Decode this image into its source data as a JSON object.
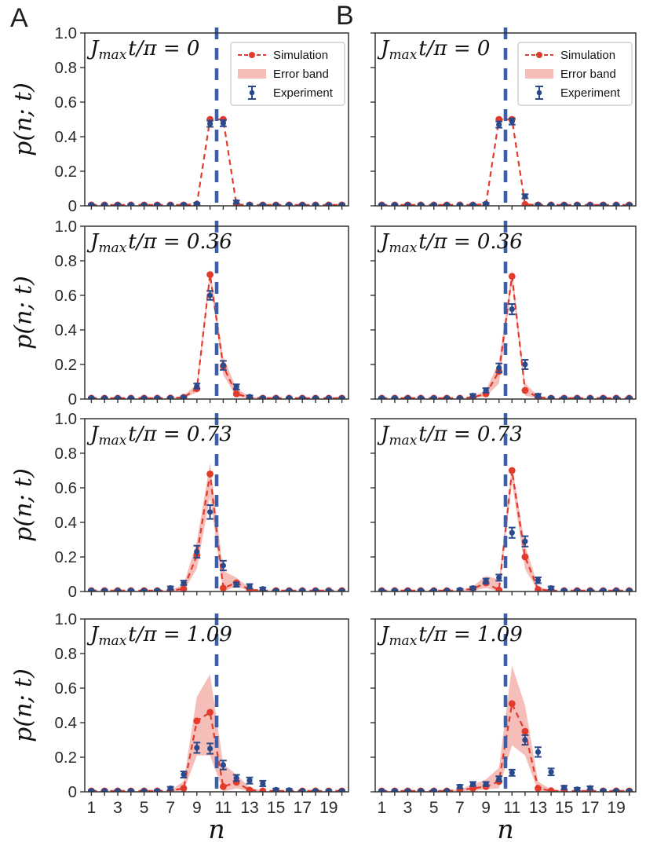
{
  "figure": {
    "panel_labels": [
      "A",
      "B"
    ],
    "ylabel": "p(n; t)",
    "xlabel": "n",
    "legend_labels": [
      "Simulation",
      "Error band",
      "Experiment"
    ],
    "xticklabels": [
      "1",
      "3",
      "5",
      "7",
      "9",
      "11",
      "13",
      "15",
      "17",
      "19"
    ],
    "yticklabels": [
      "0",
      "0.2",
      "0.4",
      "0.6",
      "0.8",
      "1.0"
    ],
    "colors": {
      "simulation": "#e23b2c",
      "error_band": "rgba(226,59,44,0.33)",
      "experiment": "#2a4a8c",
      "vline": "#3c5fa6",
      "axis": "#333333",
      "text": "#2b2b2b",
      "title": "#111111",
      "legend_border": "#c8c8c8"
    }
  },
  "chart_data": [
    {
      "id": "A1",
      "column": "A",
      "row": 1,
      "type": "line",
      "title_var": "J",
      "title_sub": "max",
      "title_rest": "t/π",
      "title_value": "0",
      "xlim": [
        0.5,
        20.5
      ],
      "ylim": [
        0,
        1
      ],
      "vline_x": 10.5,
      "show_legend": true,
      "show_xticklabels": false,
      "show_yticklabels": true,
      "x": [
        1,
        2,
        3,
        4,
        5,
        6,
        7,
        8,
        9,
        10,
        11,
        12,
        13,
        14,
        15,
        16,
        17,
        18,
        19,
        20
      ],
      "simulation": [
        0.005,
        0.005,
        0.005,
        0.005,
        0.005,
        0.005,
        0.005,
        0.005,
        0.01,
        0.5,
        0.5,
        0.008,
        0.005,
        0.005,
        0.005,
        0.005,
        0.005,
        0.005,
        0.005,
        0.005
      ],
      "band_lower": [
        0.005,
        0.005,
        0.005,
        0.005,
        0.005,
        0.005,
        0.005,
        0.005,
        0.01,
        0.5,
        0.5,
        0.008,
        0.005,
        0.005,
        0.005,
        0.005,
        0.005,
        0.005,
        0.005,
        0.005
      ],
      "band_upper": [
        0.005,
        0.005,
        0.005,
        0.005,
        0.005,
        0.005,
        0.005,
        0.005,
        0.01,
        0.5,
        0.5,
        0.008,
        0.005,
        0.005,
        0.005,
        0.005,
        0.005,
        0.005,
        0.005,
        0.005
      ],
      "experiment": [
        0.005,
        0.005,
        0.005,
        0.005,
        0.005,
        0.005,
        0.005,
        0.006,
        0.012,
        0.475,
        0.478,
        0.022,
        0.006,
        0.005,
        0.005,
        0.005,
        0.005,
        0.005,
        0.005,
        0.005
      ],
      "exp_err": [
        0.004,
        0.004,
        0.004,
        0.004,
        0.004,
        0.004,
        0.004,
        0.005,
        0.006,
        0.018,
        0.018,
        0.009,
        0.005,
        0.004,
        0.004,
        0.004,
        0.004,
        0.004,
        0.004,
        0.004
      ]
    },
    {
      "id": "B1",
      "column": "B",
      "row": 1,
      "type": "line",
      "title_var": "J",
      "title_sub": "max",
      "title_rest": "t/π",
      "title_value": "0",
      "xlim": [
        0.5,
        20.5
      ],
      "ylim": [
        0,
        1
      ],
      "vline_x": 10.5,
      "show_legend": true,
      "show_xticklabels": false,
      "show_yticklabels": false,
      "x": [
        1,
        2,
        3,
        4,
        5,
        6,
        7,
        8,
        9,
        10,
        11,
        12,
        13,
        14,
        15,
        16,
        17,
        18,
        19,
        20
      ],
      "simulation": [
        0.005,
        0.005,
        0.005,
        0.005,
        0.005,
        0.005,
        0.005,
        0.005,
        0.01,
        0.5,
        0.5,
        0.008,
        0.005,
        0.005,
        0.005,
        0.005,
        0.005,
        0.005,
        0.005,
        0.005
      ],
      "band_lower": [
        0.005,
        0.005,
        0.005,
        0.005,
        0.005,
        0.005,
        0.005,
        0.005,
        0.01,
        0.5,
        0.5,
        0.008,
        0.005,
        0.005,
        0.005,
        0.005,
        0.005,
        0.005,
        0.005,
        0.005
      ],
      "band_upper": [
        0.005,
        0.005,
        0.005,
        0.005,
        0.005,
        0.005,
        0.005,
        0.005,
        0.01,
        0.5,
        0.5,
        0.008,
        0.005,
        0.005,
        0.005,
        0.005,
        0.005,
        0.005,
        0.005,
        0.005
      ],
      "experiment": [
        0.005,
        0.005,
        0.005,
        0.005,
        0.005,
        0.005,
        0.005,
        0.005,
        0.012,
        0.47,
        0.488,
        0.055,
        0.006,
        0.005,
        0.005,
        0.005,
        0.005,
        0.005,
        0.005,
        0.005
      ],
      "exp_err": [
        0.004,
        0.004,
        0.004,
        0.004,
        0.004,
        0.004,
        0.004,
        0.004,
        0.006,
        0.018,
        0.018,
        0.012,
        0.005,
        0.004,
        0.004,
        0.004,
        0.004,
        0.004,
        0.004,
        0.004
      ]
    },
    {
      "id": "A2",
      "column": "A",
      "row": 2,
      "type": "line",
      "title_var": "J",
      "title_sub": "max",
      "title_rest": "t/π",
      "title_value": "0.36",
      "xlim": [
        0.5,
        20.5
      ],
      "ylim": [
        0,
        1
      ],
      "vline_x": 10.5,
      "show_legend": false,
      "show_xticklabels": false,
      "show_yticklabels": true,
      "x": [
        1,
        2,
        3,
        4,
        5,
        6,
        7,
        8,
        9,
        10,
        11,
        12,
        13,
        14,
        15,
        16,
        17,
        18,
        19,
        20
      ],
      "simulation": [
        0.005,
        0.005,
        0.005,
        0.005,
        0.005,
        0.005,
        0.006,
        0.01,
        0.06,
        0.72,
        0.19,
        0.03,
        0.008,
        0.005,
        0.005,
        0.005,
        0.005,
        0.005,
        0.005,
        0.005
      ],
      "band_lower": [
        0.005,
        0.005,
        0.005,
        0.005,
        0.005,
        0.005,
        0.005,
        0.006,
        0.038,
        0.69,
        0.14,
        0.012,
        0.004,
        0.005,
        0.005,
        0.005,
        0.005,
        0.005,
        0.005,
        0.005
      ],
      "band_upper": [
        0.005,
        0.005,
        0.005,
        0.005,
        0.005,
        0.005,
        0.007,
        0.018,
        0.088,
        0.752,
        0.245,
        0.062,
        0.016,
        0.005,
        0.005,
        0.005,
        0.005,
        0.005,
        0.005,
        0.005
      ],
      "experiment": [
        0.005,
        0.005,
        0.005,
        0.005,
        0.005,
        0.005,
        0.006,
        0.01,
        0.075,
        0.6,
        0.195,
        0.07,
        0.013,
        0.006,
        0.005,
        0.005,
        0.005,
        0.005,
        0.005,
        0.005
      ],
      "exp_err": [
        0.004,
        0.004,
        0.004,
        0.004,
        0.004,
        0.004,
        0.005,
        0.006,
        0.015,
        0.026,
        0.026,
        0.015,
        0.008,
        0.005,
        0.004,
        0.004,
        0.004,
        0.004,
        0.004,
        0.004
      ]
    },
    {
      "id": "B2",
      "column": "B",
      "row": 2,
      "type": "line",
      "title_var": "J",
      "title_sub": "max",
      "title_rest": "t/π",
      "title_value": "0.36",
      "xlim": [
        0.5,
        20.5
      ],
      "ylim": [
        0,
        1
      ],
      "vline_x": 10.5,
      "show_legend": false,
      "show_xticklabels": false,
      "show_yticklabels": false,
      "x": [
        1,
        2,
        3,
        4,
        5,
        6,
        7,
        8,
        9,
        10,
        11,
        12,
        13,
        14,
        15,
        16,
        17,
        18,
        19,
        20
      ],
      "simulation": [
        0.005,
        0.005,
        0.005,
        0.005,
        0.005,
        0.005,
        0.005,
        0.01,
        0.03,
        0.16,
        0.71,
        0.05,
        0.01,
        0.005,
        0.005,
        0.005,
        0.005,
        0.005,
        0.005,
        0.005
      ],
      "band_lower": [
        0.005,
        0.005,
        0.005,
        0.005,
        0.005,
        0.005,
        0.005,
        0.006,
        0.015,
        0.09,
        0.67,
        0.02,
        0.004,
        0.005,
        0.005,
        0.005,
        0.005,
        0.005,
        0.005,
        0.005
      ],
      "band_upper": [
        0.005,
        0.005,
        0.005,
        0.005,
        0.005,
        0.005,
        0.005,
        0.014,
        0.052,
        0.215,
        0.75,
        0.092,
        0.018,
        0.005,
        0.005,
        0.005,
        0.005,
        0.005,
        0.005,
        0.005
      ],
      "experiment": [
        0.005,
        0.005,
        0.005,
        0.005,
        0.005,
        0.005,
        0.005,
        0.02,
        0.05,
        0.18,
        0.52,
        0.2,
        0.02,
        0.006,
        0.005,
        0.005,
        0.005,
        0.005,
        0.005,
        0.005
      ],
      "exp_err": [
        0.004,
        0.004,
        0.004,
        0.004,
        0.004,
        0.004,
        0.004,
        0.009,
        0.013,
        0.026,
        0.03,
        0.027,
        0.01,
        0.005,
        0.004,
        0.004,
        0.004,
        0.004,
        0.004,
        0.004
      ]
    },
    {
      "id": "A3",
      "column": "A",
      "row": 3,
      "type": "line",
      "title_var": "J",
      "title_sub": "max",
      "title_rest": "t/π",
      "title_value": "0.73",
      "xlim": [
        0.5,
        20.5
      ],
      "ylim": [
        0,
        1
      ],
      "vline_x": 10.5,
      "show_legend": false,
      "show_xticklabels": false,
      "show_yticklabels": true,
      "x": [
        1,
        2,
        3,
        4,
        5,
        6,
        7,
        8,
        9,
        10,
        11,
        12,
        13,
        14,
        15,
        16,
        17,
        18,
        19,
        20
      ],
      "simulation": [
        0.005,
        0.005,
        0.005,
        0.005,
        0.005,
        0.005,
        0.006,
        0.015,
        0.21,
        0.68,
        0.02,
        0.05,
        0.01,
        0.005,
        0.005,
        0.005,
        0.005,
        0.005,
        0.005,
        0.005
      ],
      "band_lower": [
        0.005,
        0.005,
        0.005,
        0.005,
        0.005,
        0.005,
        0.005,
        0.006,
        0.13,
        0.55,
        0.001,
        0.028,
        0.003,
        0.005,
        0.005,
        0.005,
        0.005,
        0.005,
        0.005,
        0.005
      ],
      "band_upper": [
        0.005,
        0.005,
        0.005,
        0.005,
        0.005,
        0.005,
        0.008,
        0.04,
        0.29,
        0.745,
        0.12,
        0.08,
        0.022,
        0.005,
        0.005,
        0.005,
        0.005,
        0.005,
        0.005,
        0.005
      ],
      "experiment": [
        0.005,
        0.005,
        0.005,
        0.005,
        0.005,
        0.005,
        0.02,
        0.05,
        0.23,
        0.46,
        0.15,
        0.04,
        0.03,
        0.015,
        0.005,
        0.005,
        0.005,
        0.005,
        0.005,
        0.005
      ],
      "exp_err": [
        0.004,
        0.004,
        0.004,
        0.004,
        0.004,
        0.004,
        0.009,
        0.013,
        0.035,
        0.04,
        0.028,
        0.013,
        0.013,
        0.008,
        0.004,
        0.004,
        0.004,
        0.004,
        0.004,
        0.004
      ]
    },
    {
      "id": "B3",
      "column": "B",
      "row": 3,
      "type": "line",
      "title_var": "J",
      "title_sub": "max",
      "title_rest": "t/π",
      "title_value": "0.73",
      "xlim": [
        0.5,
        20.5
      ],
      "ylim": [
        0,
        1
      ],
      "vline_x": 10.5,
      "show_legend": false,
      "show_xticklabels": false,
      "show_yticklabels": false,
      "x": [
        1,
        2,
        3,
        4,
        5,
        6,
        7,
        8,
        9,
        10,
        11,
        12,
        13,
        14,
        15,
        16,
        17,
        18,
        19,
        20
      ],
      "simulation": [
        0.005,
        0.005,
        0.005,
        0.005,
        0.005,
        0.005,
        0.006,
        0.015,
        0.05,
        0.008,
        0.7,
        0.2,
        0.012,
        0.005,
        0.005,
        0.005,
        0.005,
        0.005,
        0.005,
        0.005
      ],
      "band_lower": [
        0.005,
        0.005,
        0.005,
        0.005,
        0.005,
        0.005,
        0.005,
        0.006,
        0.02,
        0.001,
        0.63,
        0.13,
        0.003,
        0.005,
        0.005,
        0.005,
        0.005,
        0.005,
        0.005,
        0.005
      ],
      "band_upper": [
        0.005,
        0.005,
        0.005,
        0.005,
        0.005,
        0.005,
        0.008,
        0.03,
        0.09,
        0.07,
        0.73,
        0.268,
        0.03,
        0.005,
        0.005,
        0.005,
        0.005,
        0.005,
        0.005,
        0.005
      ],
      "experiment": [
        0.005,
        0.005,
        0.005,
        0.005,
        0.005,
        0.005,
        0.01,
        0.02,
        0.06,
        0.08,
        0.34,
        0.29,
        0.065,
        0.02,
        0.005,
        0.005,
        0.005,
        0.005,
        0.005,
        0.005
      ],
      "exp_err": [
        0.004,
        0.004,
        0.004,
        0.004,
        0.004,
        0.004,
        0.006,
        0.008,
        0.015,
        0.018,
        0.03,
        0.03,
        0.017,
        0.009,
        0.004,
        0.004,
        0.004,
        0.004,
        0.004,
        0.004
      ]
    },
    {
      "id": "A4",
      "column": "A",
      "row": 4,
      "type": "line",
      "title_var": "J",
      "title_sub": "max",
      "title_rest": "t/π",
      "title_value": "1.09",
      "xlim": [
        0.5,
        20.5
      ],
      "ylim": [
        0,
        1
      ],
      "vline_x": 10.5,
      "show_legend": false,
      "show_xticklabels": true,
      "show_yticklabels": true,
      "x": [
        1,
        2,
        3,
        4,
        5,
        6,
        7,
        8,
        9,
        10,
        11,
        12,
        13,
        14,
        15,
        16,
        17,
        18,
        19,
        20
      ],
      "simulation": [
        0.005,
        0.005,
        0.005,
        0.005,
        0.005,
        0.005,
        0.006,
        0.02,
        0.41,
        0.46,
        0.03,
        0.055,
        0.01,
        0.005,
        0.005,
        0.005,
        0.005,
        0.005,
        0.005,
        0.005
      ],
      "band_lower": [
        0.005,
        0.005,
        0.005,
        0.005,
        0.005,
        0.005,
        0.005,
        0.006,
        0.21,
        0.21,
        0.001,
        0.02,
        0.003,
        0.005,
        0.005,
        0.005,
        0.005,
        0.005,
        0.005,
        0.005
      ],
      "band_upper": [
        0.005,
        0.005,
        0.005,
        0.005,
        0.005,
        0.005,
        0.008,
        0.06,
        0.55,
        0.68,
        0.16,
        0.1,
        0.025,
        0.005,
        0.005,
        0.005,
        0.005,
        0.005,
        0.005,
        0.005
      ],
      "experiment": [
        0.005,
        0.005,
        0.005,
        0.005,
        0.005,
        0.005,
        0.02,
        0.1,
        0.255,
        0.25,
        0.155,
        0.08,
        0.065,
        0.048,
        0.012,
        0.01,
        0.005,
        0.005,
        0.005,
        0.005
      ],
      "exp_err": [
        0.004,
        0.004,
        0.004,
        0.004,
        0.004,
        0.004,
        0.009,
        0.018,
        0.03,
        0.03,
        0.026,
        0.018,
        0.018,
        0.016,
        0.007,
        0.007,
        0.004,
        0.004,
        0.004,
        0.004
      ]
    },
    {
      "id": "B4",
      "column": "B",
      "row": 4,
      "type": "line",
      "title_var": "J",
      "title_sub": "max",
      "title_rest": "t/π",
      "title_value": "1.09",
      "xlim": [
        0.5,
        20.5
      ],
      "ylim": [
        0,
        1
      ],
      "vline_x": 10.5,
      "show_legend": false,
      "show_xticklabels": true,
      "show_yticklabels": false,
      "x": [
        1,
        2,
        3,
        4,
        5,
        6,
        7,
        8,
        9,
        10,
        11,
        12,
        13,
        14,
        15,
        16,
        17,
        18,
        19,
        20
      ],
      "simulation": [
        0.005,
        0.005,
        0.005,
        0.005,
        0.005,
        0.005,
        0.01,
        0.02,
        0.03,
        0.06,
        0.51,
        0.35,
        0.02,
        0.006,
        0.005,
        0.005,
        0.005,
        0.005,
        0.005,
        0.005
      ],
      "band_lower": [
        0.005,
        0.005,
        0.005,
        0.005,
        0.005,
        0.005,
        0.006,
        0.006,
        0.014,
        0.02,
        0.27,
        0.21,
        0.003,
        0.001,
        0.005,
        0.005,
        0.005,
        0.005,
        0.005,
        0.005
      ],
      "band_upper": [
        0.005,
        0.005,
        0.005,
        0.005,
        0.005,
        0.005,
        0.014,
        0.042,
        0.072,
        0.14,
        0.73,
        0.5,
        0.06,
        0.012,
        0.005,
        0.005,
        0.005,
        0.005,
        0.005,
        0.005
      ],
      "experiment": [
        0.005,
        0.005,
        0.005,
        0.005,
        0.005,
        0.005,
        0.03,
        0.045,
        0.045,
        0.075,
        0.11,
        0.3,
        0.23,
        0.115,
        0.025,
        0.015,
        0.022,
        0.006,
        0.005,
        0.005
      ],
      "exp_err": [
        0.004,
        0.004,
        0.004,
        0.004,
        0.004,
        0.004,
        0.01,
        0.012,
        0.012,
        0.015,
        0.018,
        0.028,
        0.028,
        0.02,
        0.01,
        0.008,
        0.01,
        0.005,
        0.004,
        0.004
      ]
    }
  ]
}
